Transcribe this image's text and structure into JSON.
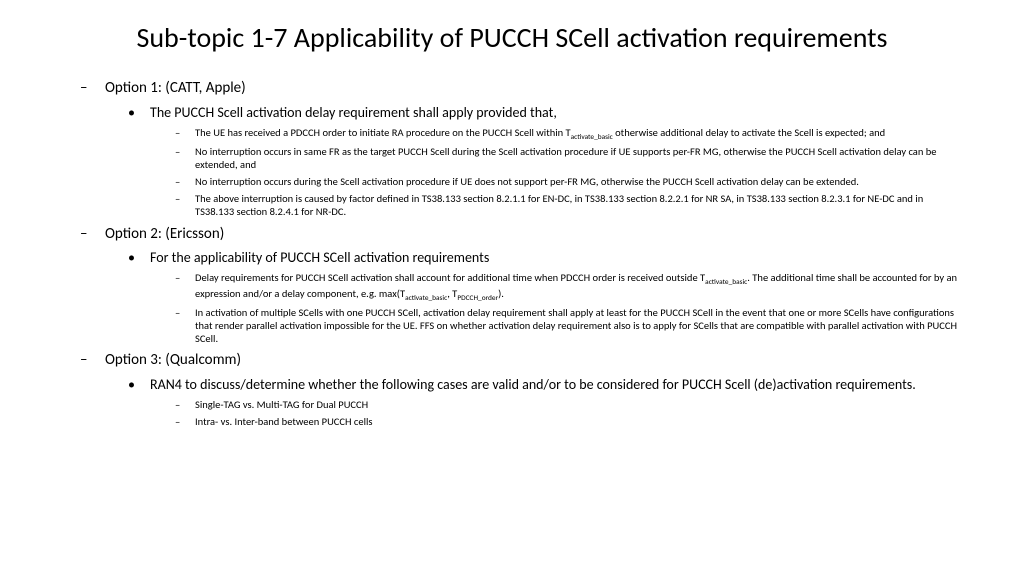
{
  "title": "Sub-topic 1-7 Applicability of PUCCH SCell activation requirements",
  "opt1": {
    "head": "Option 1: (CATT, Apple)",
    "main": "The PUCCH Scell activation delay requirement shall apply provided that,",
    "s1a": "The UE has received a PDCCH order to initiate RA procedure on the PUCCH Scell within T",
    "s1sub": "activate_basic",
    "s1b": " otherwise additional delay to activate the Scell is expected; and",
    "s2": "No interruption occurs in same FR as the target PUCCH Scell during the Scell activation procedure if UE supports per-FR MG, otherwise the PUCCH Scell activation delay can be extended, and",
    "s3": "No interruption occurs during the Scell activation procedure if UE does not support per-FR MG, otherwise the PUCCH Scell activation delay can be extended.",
    "s4": "The above interruption is caused by factor defined in TS38.133 section 8.2.1.1 for EN-DC, in TS38.133 section 8.2.2.1 for NR SA, in TS38.133 section 8.2.3.1 for NE-DC and in TS38.133 section 8.2.4.1 for NR-DC."
  },
  "opt2": {
    "head": "Option 2: (Ericsson)",
    "main": "For the applicability of PUCCH SCell activation requirements",
    "s1a": "Delay requirements for PUCCH SCell activation shall account for additional time when PDCCH order is received outside T",
    "s1sub1": "activate_basic",
    "s1b": ". The additional time shall be accounted for by an expression and/or a delay component, e.g. max(T",
    "s1sub2": "activate_basic",
    "s1c": ", T",
    "s1sub3": "PDCCH_order",
    "s1d": ").",
    "s2": "In activation of multiple SCells with one PUCCH SCell, activation delay requirement shall apply at least for the PUCCH SCell in the event that one or more SCells have configurations that render parallel activation impossible for the UE. FFS on whether activation delay requirement also is to apply for SCells that are compatible with parallel activation with PUCCH SCell."
  },
  "opt3": {
    "head": "Option 3: (Qualcomm)",
    "main": "RAN4 to discuss/determine whether the following cases are valid and/or to be considered for PUCCH Scell (de)activation requirements.",
    "s1": "Single-TAG vs. Multi-TAG for Dual PUCCH",
    "s2": "Intra- vs. Inter-band between PUCCH cells"
  }
}
